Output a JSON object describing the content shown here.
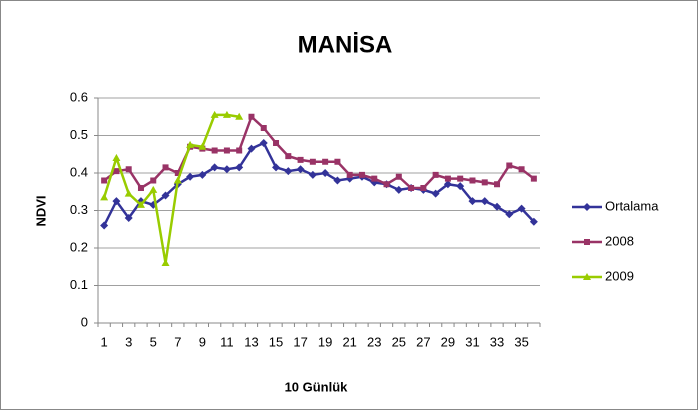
{
  "chart_data": {
    "type": "line",
    "title": "MANİSA",
    "x_label": "10 Günlük",
    "y_label": "NDVI",
    "categories": [
      "1",
      null,
      "3",
      null,
      "5",
      null,
      "7",
      null,
      "9",
      null,
      "11",
      null,
      "13",
      null,
      "15",
      null,
      "17",
      null,
      "19",
      null,
      "21",
      null,
      "23",
      null,
      "25",
      null,
      "27",
      null,
      "29",
      null,
      "31",
      null,
      "33",
      null,
      "35",
      null
    ],
    "series": [
      {
        "name": "Ortalama",
        "color": "#333399",
        "marker": "diamond",
        "values": [
          0.26,
          0.325,
          0.28,
          0.325,
          0.315,
          0.34,
          0.37,
          0.39,
          0.395,
          0.415,
          0.41,
          0.415,
          0.465,
          0.48,
          0.415,
          0.405,
          0.41,
          0.395,
          0.4,
          0.38,
          0.385,
          0.39,
          0.375,
          0.37,
          0.355,
          0.36,
          0.355,
          0.345,
          0.37,
          0.365,
          0.325,
          0.325,
          0.31,
          0.29,
          0.305,
          0.27
        ]
      },
      {
        "name": "2008",
        "color": "#993366",
        "marker": "square",
        "values": [
          0.38,
          0.405,
          0.41,
          0.36,
          0.38,
          0.415,
          0.4,
          0.47,
          0.465,
          0.46,
          0.46,
          0.46,
          0.55,
          0.52,
          0.48,
          0.445,
          0.435,
          0.43,
          0.43,
          0.43,
          0.395,
          0.395,
          0.385,
          0.37,
          0.39,
          0.36,
          0.36,
          0.395,
          0.385,
          0.385,
          0.38,
          0.375,
          0.37,
          0.42,
          0.41,
          0.385
        ]
      },
      {
        "name": "2009",
        "color": "#99cc00",
        "marker": "triangle",
        "values": [
          0.335,
          0.44,
          0.345,
          0.315,
          0.355,
          0.16,
          0.38,
          0.475,
          0.47,
          0.555,
          0.555,
          0.55,
          null,
          null,
          null,
          null,
          null,
          null,
          null,
          null,
          null,
          null,
          null,
          null,
          null,
          null,
          null,
          null,
          null,
          null,
          null,
          null,
          null,
          null,
          null,
          null
        ]
      }
    ],
    "ylim": [
      0,
      0.6
    ],
    "yticks": [
      0,
      0.1,
      0.2,
      0.3,
      0.4,
      0.5,
      0.6
    ],
    "grid": true,
    "legend": "right"
  }
}
